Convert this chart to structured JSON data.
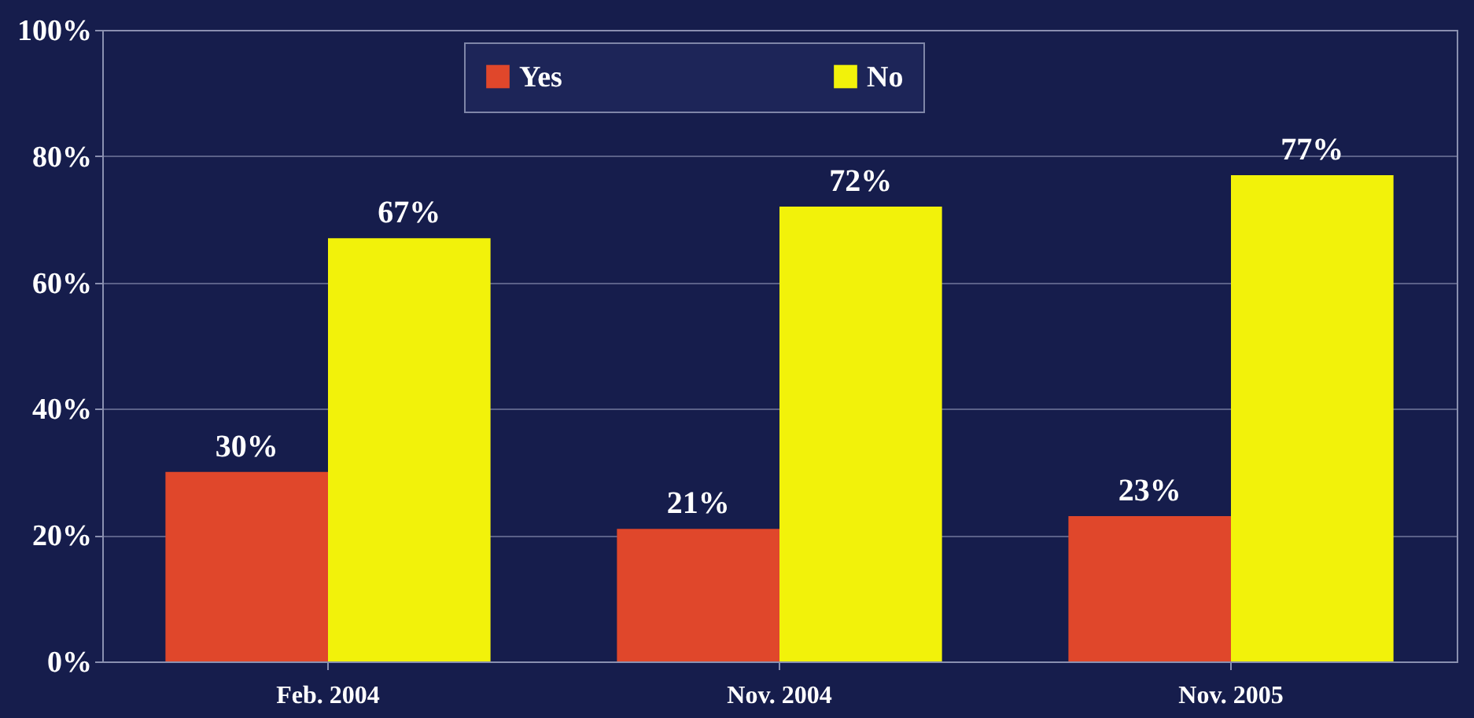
{
  "chart_data": {
    "type": "bar",
    "categories": [
      "Feb. 2004",
      "Nov. 2004",
      "Nov. 2005"
    ],
    "series": [
      {
        "name": "Yes",
        "color": "#e0472b",
        "values": [
          30,
          21,
          23
        ],
        "value_labels": [
          "30%",
          "21%",
          "23%"
        ]
      },
      {
        "name": "No",
        "color": "#f2f20a",
        "values": [
          67,
          72,
          77
        ],
        "value_labels": [
          "67%",
          "72%",
          "77%"
        ]
      }
    ],
    "ylim": [
      0,
      100
    ],
    "yticks": [
      {
        "value": 0,
        "label": "0%"
      },
      {
        "value": 20,
        "label": "20%"
      },
      {
        "value": 40,
        "label": "40%"
      },
      {
        "value": 60,
        "label": "60%"
      },
      {
        "value": 80,
        "label": "80%"
      },
      {
        "value": 100,
        "label": "100%"
      }
    ],
    "grid": "y",
    "legend": "top"
  }
}
